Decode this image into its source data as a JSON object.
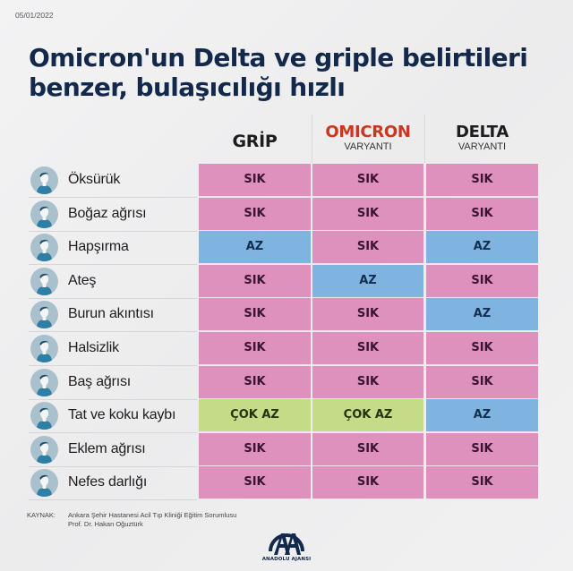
{
  "date": "05/01/2022",
  "title": {
    "line1": "Omicron'un Delta ve griple belirtileri",
    "line2": "benzer, bulaşıcılığı hızlı"
  },
  "columns": [
    {
      "main": "GRİP",
      "sub": "",
      "color": "#1d1d1f"
    },
    {
      "main": "OMICRON",
      "sub": "VARYANTI",
      "color": "#c8371f"
    },
    {
      "main": "DELTA",
      "sub": "VARYANTI",
      "color": "#1d1d1f"
    }
  ],
  "legend_colors": {
    "SIK": "#de91bd",
    "AZ": "#7fb4e0",
    "ÇOK AZ": "#c4dc88"
  },
  "rows": [
    {
      "symptom": "Öksürük",
      "icon": "coughing-person-icon",
      "values": [
        "SIK",
        "SIK",
        "SIK"
      ]
    },
    {
      "symptom": "Boğaz ağrısı",
      "icon": "sore-throat-person-icon",
      "values": [
        "SIK",
        "SIK",
        "SIK"
      ]
    },
    {
      "symptom": "Hapşırma",
      "icon": "sneezing-person-icon",
      "values": [
        "AZ",
        "SIK",
        "AZ"
      ]
    },
    {
      "symptom": "Ateş",
      "icon": "fever-thermometer-person-icon",
      "values": [
        "SIK",
        "AZ",
        "SIK"
      ]
    },
    {
      "symptom": "Burun akıntısı",
      "icon": "runny-nose-person-icon",
      "values": [
        "SIK",
        "SIK",
        "AZ"
      ]
    },
    {
      "symptom": "Halsizlik",
      "icon": "fatigue-person-icon",
      "values": [
        "SIK",
        "SIK",
        "SIK"
      ]
    },
    {
      "symptom": "Baş ağrısı",
      "icon": "headache-person-icon",
      "values": [
        "SIK",
        "SIK",
        "SIK"
      ]
    },
    {
      "symptom": "Tat ve koku kaybı",
      "icon": "loss-of-taste-smell-person-icon",
      "values": [
        "ÇOK AZ",
        "ÇOK AZ",
        "AZ"
      ]
    },
    {
      "symptom": "Eklem ağrısı",
      "icon": "joint-pain-person-icon",
      "values": [
        "SIK",
        "SIK",
        "SIK"
      ]
    },
    {
      "symptom": "Nefes darlığı",
      "icon": "shortness-of-breath-person-icon",
      "values": [
        "SIK",
        "SIK",
        "SIK"
      ]
    }
  ],
  "footer": {
    "source_label": "KAYNAK:",
    "source_line1": "Ankara Şehir Hastanesi Acil Tıp Kliniği Eğitim Sorumlusu",
    "source_line2": "Prof. Dr. Hakan Oğuztürk",
    "logo_text": "ANADOLU AJANSI"
  }
}
